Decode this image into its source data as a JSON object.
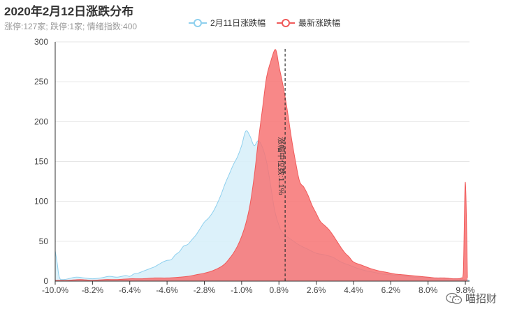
{
  "header": {
    "title": "2020年2月12日涨跌分布",
    "subtitle": "涨停:127家; 跌停:1家; 情绪指数:400"
  },
  "watermark": {
    "text": "喵招财",
    "icon": "wechat-icon"
  },
  "chart_data": {
    "type": "area",
    "title": "2020年2月12日涨跌分布",
    "xlabel": "",
    "ylabel": "",
    "xlim": [
      -10.0,
      10.0
    ],
    "ylim": [
      0,
      300
    ],
    "y_ticks": [
      0,
      50,
      100,
      150,
      200,
      250,
      300
    ],
    "x_ticks": [
      -10.0,
      -8.2,
      -6.4,
      -4.6,
      -2.8,
      -1.0,
      0.8,
      2.6,
      4.4,
      6.2,
      8.0,
      9.8
    ],
    "x_tick_labels": [
      "-10.0%",
      "-8.2%",
      "-6.4%",
      "-4.6%",
      "-2.8%",
      "-1.0%",
      "0.8%",
      "2.6%",
      "4.4%",
      "6.2%",
      "8.0%",
      "9.8%"
    ],
    "legend": {
      "position": "top-center"
    },
    "series": [
      {
        "name": "2月11日涨跌幅",
        "color": "#8fd0ee",
        "fill": "#d6eef9",
        "x": [
          -10.0,
          -9.9,
          -9.8,
          -9.6,
          -9.0,
          -8.6,
          -8.2,
          -7.8,
          -7.4,
          -7.0,
          -6.6,
          -6.4,
          -6.2,
          -6.0,
          -5.8,
          -5.6,
          -5.4,
          -5.2,
          -5.0,
          -4.8,
          -4.6,
          -4.4,
          -4.2,
          -4.0,
          -3.8,
          -3.6,
          -3.4,
          -3.2,
          -3.0,
          -2.8,
          -2.6,
          -2.4,
          -2.2,
          -2.0,
          -1.8,
          -1.6,
          -1.4,
          -1.2,
          -1.0,
          -0.8,
          -0.6,
          -0.4,
          -0.2,
          0.0,
          0.2,
          0.4,
          0.6,
          0.8,
          1.0,
          1.4,
          1.8,
          2.2,
          2.6,
          3.0,
          3.4,
          3.8,
          4.2,
          4.6,
          5.0,
          5.4,
          5.8,
          6.2,
          6.6,
          7.0,
          7.4,
          7.8,
          8.2,
          8.6,
          9.0,
          9.4,
          9.6,
          9.8,
          10.0
        ],
        "values": [
          38,
          22,
          5,
          2,
          5,
          4,
          3,
          4,
          6,
          5,
          7,
          6,
          9,
          10,
          12,
          14,
          16,
          18,
          21,
          24,
          26,
          27,
          33,
          37,
          44,
          46,
          52,
          58,
          66,
          74,
          79,
          86,
          96,
          108,
          122,
          134,
          146,
          156,
          170,
          188,
          182,
          170,
          176,
          168,
          150,
          120,
          88,
          70,
          60,
          52,
          45,
          40,
          35,
          33,
          30,
          24,
          20,
          16,
          13,
          11,
          9,
          8,
          7,
          6,
          5,
          5,
          4,
          4,
          3,
          3,
          2,
          2,
          1
        ]
      },
      {
        "name": "最新涨跌幅",
        "color": "#f05a5a",
        "fill": "#f77373",
        "x": [
          -10.0,
          -9.4,
          -8.8,
          -8.2,
          -7.6,
          -7.0,
          -6.4,
          -5.8,
          -5.2,
          -4.6,
          -4.0,
          -3.6,
          -3.2,
          -2.8,
          -2.4,
          -2.0,
          -1.8,
          -1.6,
          -1.4,
          -1.2,
          -1.0,
          -0.8,
          -0.6,
          -0.4,
          -0.2,
          0.0,
          0.2,
          0.4,
          0.6,
          0.7,
          0.8,
          1.0,
          1.2,
          1.4,
          1.6,
          1.8,
          2.0,
          2.2,
          2.4,
          2.6,
          2.8,
          3.0,
          3.2,
          3.4,
          3.6,
          3.8,
          4.0,
          4.2,
          4.4,
          4.8,
          5.2,
          5.6,
          6.0,
          6.4,
          6.8,
          7.2,
          7.6,
          8.0,
          8.4,
          8.8,
          9.2,
          9.4,
          9.6,
          9.7,
          9.8,
          9.9
        ],
        "values": [
          1,
          1,
          2,
          1,
          2,
          2,
          3,
          3,
          4,
          4,
          5,
          6,
          8,
          10,
          13,
          18,
          22,
          28,
          35,
          44,
          56,
          72,
          95,
          130,
          175,
          215,
          255,
          275,
          290,
          285,
          270,
          245,
          215,
          180,
          150,
          125,
          118,
          108,
          95,
          85,
          75,
          70,
          65,
          58,
          50,
          42,
          35,
          30,
          24,
          20,
          16,
          13,
          11,
          9,
          8,
          7,
          6,
          5,
          4,
          4,
          3,
          3,
          4,
          10,
          124,
          4
        ]
      }
    ],
    "markline": {
      "x": 1.1,
      "label": "涨幅中位数:1.1%"
    }
  }
}
